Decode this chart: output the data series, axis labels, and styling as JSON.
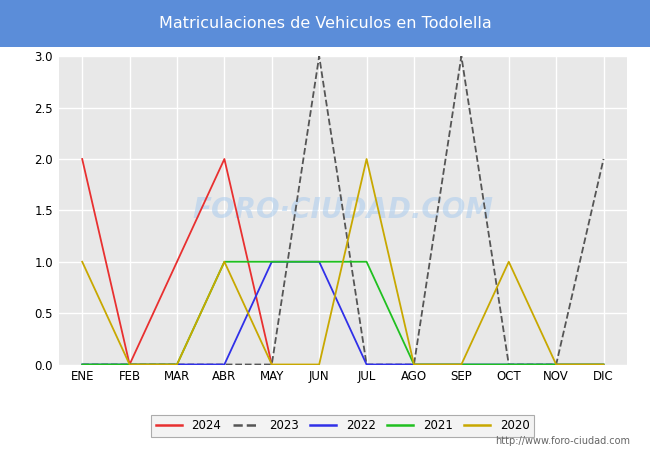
{
  "title": "Matriculaciones de Vehiculos en Todolella",
  "title_bg_color": "#5b8dd9",
  "title_text_color": "#ffffff",
  "months": [
    "ENE",
    "FEB",
    "MAR",
    "ABR",
    "MAY",
    "JUN",
    "JUL",
    "AGO",
    "SEP",
    "OCT",
    "NOV",
    "DIC"
  ],
  "series": {
    "2024": {
      "color": "#e83030",
      "data": [
        2,
        0,
        1,
        2,
        0,
        null,
        null,
        null,
        null,
        null,
        null,
        null
      ]
    },
    "2023": {
      "color": "#555555",
      "linestyle": "--",
      "data": [
        0,
        0,
        0,
        0,
        0,
        3,
        0,
        0,
        3,
        0,
        0,
        2
      ]
    },
    "2022": {
      "color": "#3030e8",
      "linestyle": "-",
      "data": [
        0,
        0,
        0,
        0,
        1,
        1,
        0,
        0,
        0,
        0,
        0,
        0
      ]
    },
    "2021": {
      "color": "#20c020",
      "linestyle": "-",
      "data": [
        0,
        0,
        0,
        1,
        1,
        1,
        1,
        0,
        0,
        0,
        0,
        0
      ]
    },
    "2020": {
      "color": "#c8a800",
      "linestyle": "-",
      "data": [
        1,
        0,
        0,
        1,
        0,
        0,
        2,
        0,
        0,
        1,
        0,
        0
      ]
    }
  },
  "ylim": [
    0,
    3.0
  ],
  "yticks": [
    0.0,
    0.5,
    1.0,
    1.5,
    2.0,
    2.5,
    3.0
  ],
  "watermark": "FORO·CIUDAD.COM",
  "url": "http://www.foro-ciudad.com",
  "plot_bg_color": "#e8e8e8",
  "grid_color": "#ffffff",
  "fig_bg_color": "#ffffff",
  "legend_years": [
    "2024",
    "2023",
    "2022",
    "2021",
    "2020"
  ],
  "linewidth": 1.3
}
